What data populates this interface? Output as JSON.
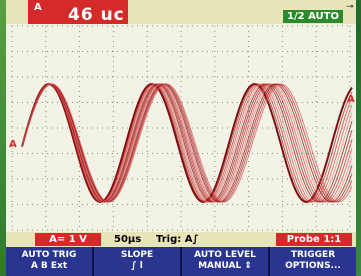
{
  "header": {
    "channel": "A",
    "reading": "46 uc",
    "mode": "1/2 AUTO"
  },
  "markers": {
    "left": "A",
    "right": "A"
  },
  "status": {
    "scale": "A= 1 V",
    "timebase": "50µs",
    "trigger": "Trig: A∫",
    "probe": "Probe 1:1"
  },
  "softkeys": [
    {
      "label": "AUTO TRIG",
      "options": "A B Ext"
    },
    {
      "label": "SLOPE",
      "options": "∫   l"
    },
    {
      "label": "AUTO LEVEL",
      "options": "MANUAL ⇕"
    },
    {
      "label": "TRIGGER",
      "options": "OPTIONS..."
    }
  ]
}
